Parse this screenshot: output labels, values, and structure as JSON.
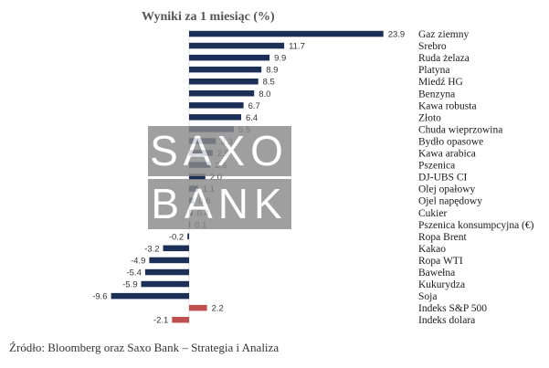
{
  "chart_data": {
    "type": "bar",
    "orientation": "horizontal",
    "title": "Wyniki za 1 miesiąc (%)",
    "categories": [
      "Gaz ziemny",
      "Srebro",
      "Ruda żelaza",
      "Platyna",
      "Miedź HG",
      "Benzyna",
      "Kawa robusta",
      "Złoto",
      "Chuda wieprzowina",
      "Bydło opasowe",
      "Kawa arabica",
      "Pszenica",
      "DJ-UBS CI",
      "Olej opałowy",
      "Ojel napędowy",
      "Cukier",
      "Pszenica konsumpcyjna (€)",
      "Ropa Brent",
      "Kakao",
      "Ropa WTI",
      "Bawełna",
      "Kukurydza",
      "Soja",
      "Indeks S&P 500",
      "Indeks dolara"
    ],
    "values": [
      23.9,
      11.7,
      9.9,
      8.9,
      8.5,
      8.0,
      6.7,
      6.4,
      5.5,
      3.3,
      2.9,
      2.6,
      2.0,
      1.1,
      0.6,
      0.4,
      0.1,
      -0.2,
      -3.2,
      -4.9,
      -5.4,
      -5.9,
      -9.6,
      2.2,
      -2.1
    ],
    "value_labels": [
      "23.9",
      "11.7",
      "9.9",
      "8.9",
      "8.5",
      "8.0",
      "6.7",
      "6.4",
      "5.5",
      "3.3",
      "2.9",
      "2.6",
      "2.0",
      "1.1",
      "0.6",
      "0.4",
      "0.1",
      "-0.2",
      "-3.2",
      "-4.9",
      "-5.4",
      "-5.9",
      "-9.6",
      "2.2",
      "-2.1"
    ],
    "colors": [
      "navy",
      "navy",
      "navy",
      "navy",
      "navy",
      "navy",
      "navy",
      "navy",
      "navy",
      "navy",
      "navy",
      "navy",
      "navy",
      "navy",
      "navy",
      "navy",
      "navy",
      "navy",
      "navy",
      "navy",
      "navy",
      "navy",
      "navy",
      "red",
      "red"
    ],
    "palette": {
      "navy": "#1c2f57",
      "red": "#c0504d"
    },
    "xlim": [
      -11,
      24
    ],
    "grid": false,
    "legend": "none"
  },
  "watermark": {
    "line1": "SAXO",
    "line2": "BANK",
    "color": "#8a8a8a"
  },
  "source": "Źródło: Bloomberg oraz Saxo Bank – Strategia i Analiza"
}
